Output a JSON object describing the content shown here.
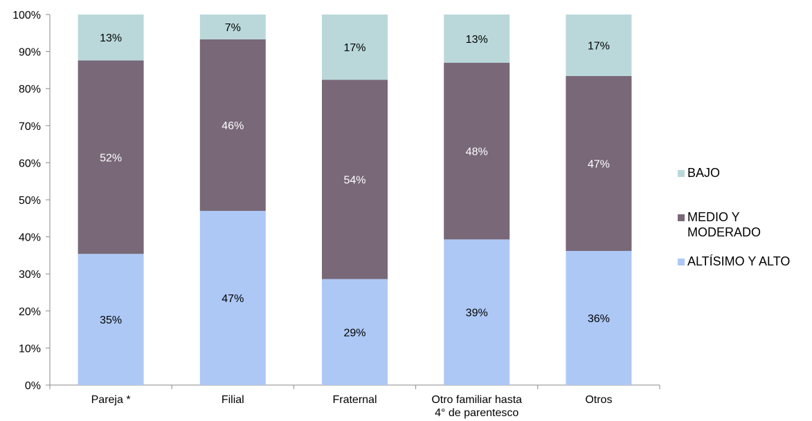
{
  "chart_data": {
    "type": "bar",
    "stacked": true,
    "categories": [
      [
        "Pareja *"
      ],
      [
        "Filial"
      ],
      [
        "Fraternal"
      ],
      [
        "Otro familiar hasta",
        "4° de parentesco"
      ],
      [
        "Otros"
      ]
    ],
    "series": [
      {
        "name": "ALTÍSIMO Y ALTO",
        "color": "#adc8f5",
        "label_color": "#000000",
        "values": [
          35,
          47,
          29,
          39,
          36
        ],
        "fractions": [
          0.354,
          0.47,
          0.286,
          0.393,
          0.362
        ]
      },
      {
        "name": "MEDIO Y MODERADO",
        "color": "#786878",
        "label_color": "#ffffff",
        "values": [
          52,
          46,
          54,
          48,
          47
        ],
        "fractions": [
          0.522,
          0.463,
          0.538,
          0.477,
          0.472
        ]
      },
      {
        "name": "BAJO",
        "color": "#bad8d9",
        "label_color": "#000000",
        "values": [
          13,
          7,
          17,
          13,
          17
        ],
        "fractions": [
          0.124,
          0.067,
          0.176,
          0.13,
          0.166
        ]
      }
    ],
    "data_label_format": "{v}%",
    "y_ticks": [
      "0%",
      "10%",
      "20%",
      "30%",
      "40%",
      "50%",
      "60%",
      "70%",
      "80%",
      "90%",
      "100%"
    ],
    "ylim": [
      0,
      100
    ],
    "title": "",
    "xlabel": "",
    "ylabel": "",
    "grid": false,
    "legend": {
      "placement": "right",
      "order": [
        2,
        1,
        0
      ],
      "entries": [
        [
          "BAJO"
        ],
        [
          "MEDIO Y",
          "MODERADO"
        ],
        [
          "ALTÍSIMO Y ALTO"
        ]
      ]
    }
  }
}
